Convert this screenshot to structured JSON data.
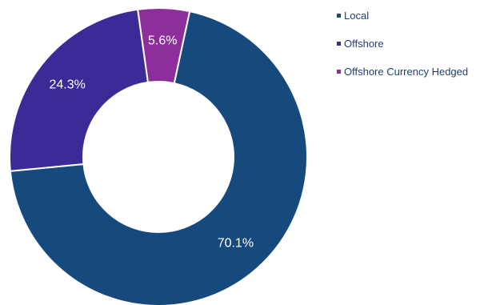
{
  "chart_data": {
    "type": "pie",
    "donut": true,
    "categories": [
      "Local",
      "Offshore",
      "Offshore Currency Hedged"
    ],
    "values": [
      70.1,
      24.3,
      5.6
    ],
    "data_labels": [
      "70.1%",
      "24.3%",
      "5.6%"
    ],
    "colors": [
      "#174a7c",
      "#3a2b96",
      "#8e2e9d"
    ],
    "title": "",
    "legend_position": "top-right"
  }
}
